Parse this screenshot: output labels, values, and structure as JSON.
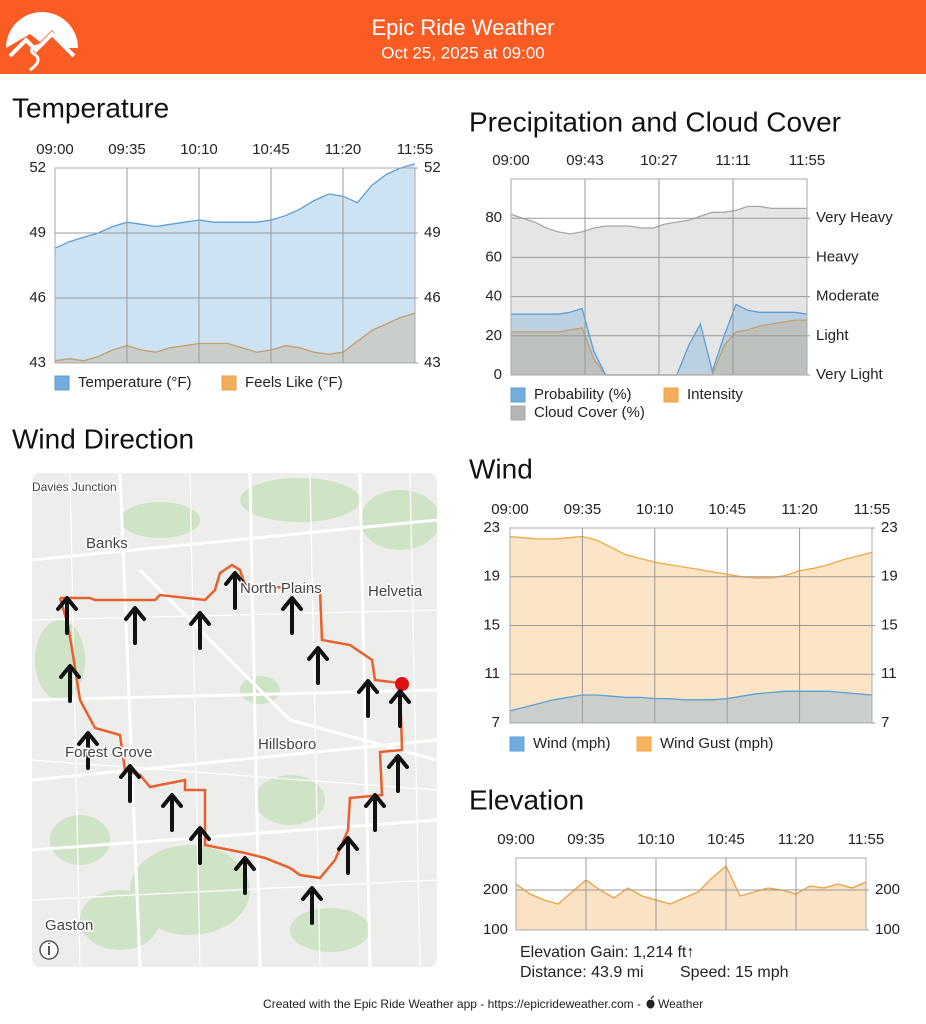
{
  "header": {
    "title": "Epic Ride Weather",
    "subtitle": "Oct 25, 2025 at 09:00"
  },
  "chart_data": [
    {
      "type": "area",
      "title": "Temperature",
      "x": [
        0,
        7,
        14,
        21,
        28,
        35,
        42,
        49,
        56,
        63,
        70,
        77,
        84,
        91,
        98,
        105,
        112,
        119,
        126,
        133,
        140,
        147,
        154,
        161,
        168,
        175
      ],
      "xlim": [
        0,
        175
      ],
      "xticks": [
        {
          "value": 0,
          "label": "09:00"
        },
        {
          "value": 35,
          "label": "09:35"
        },
        {
          "value": 70,
          "label": "10:10"
        },
        {
          "value": 105,
          "label": "10:45"
        },
        {
          "value": 140,
          "label": "11:20"
        },
        {
          "value": 175,
          "label": "11:55"
        }
      ],
      "ylim": [
        43,
        52
      ],
      "yticks": [
        43,
        46,
        49,
        52
      ],
      "y2lim": [
        43,
        52
      ],
      "y2ticks": [
        43,
        46,
        49,
        52
      ],
      "grid": true,
      "legend": "bottom",
      "series": [
        {
          "name": "Temperature (°F)",
          "color": "#5b9fd8",
          "values": [
            48.3,
            48.6,
            48.8,
            49.0,
            49.3,
            49.5,
            49.4,
            49.3,
            49.4,
            49.5,
            49.6,
            49.5,
            49.5,
            49.5,
            49.5,
            49.6,
            49.8,
            50.1,
            50.5,
            50.8,
            50.7,
            50.4,
            51.2,
            51.7,
            52.0,
            52.2
          ]
        },
        {
          "name": "Feels Like (°F)",
          "color": "#f0a040",
          "values": [
            43.1,
            43.2,
            43.1,
            43.3,
            43.6,
            43.8,
            43.6,
            43.5,
            43.7,
            43.8,
            43.9,
            43.9,
            43.9,
            43.7,
            43.5,
            43.6,
            43.8,
            43.7,
            43.5,
            43.4,
            43.5,
            44.0,
            44.5,
            44.8,
            45.1,
            45.3
          ]
        }
      ]
    },
    {
      "type": "area",
      "title": "Precipitation and Cloud Cover",
      "x": [
        0,
        7,
        14,
        21,
        28,
        35,
        42,
        49,
        56,
        63,
        70,
        77,
        84,
        91,
        98,
        105,
        112,
        119,
        126,
        133,
        140,
        147,
        154,
        161,
        168,
        175
      ],
      "xlim": [
        0,
        175
      ],
      "xticks": [
        {
          "value": 0,
          "label": "09:00"
        },
        {
          "value": 43.75,
          "label": "09:43"
        },
        {
          "value": 87.5,
          "label": "10:27"
        },
        {
          "value": 131.25,
          "label": "11:11"
        },
        {
          "value": 175,
          "label": "11:55"
        }
      ],
      "ylim": [
        0,
        100
      ],
      "yticks": [
        0,
        20,
        40,
        60,
        80
      ],
      "y2lim": [
        0,
        100
      ],
      "y2ticks": [
        {
          "value": 0,
          "label": "Very Light"
        },
        {
          "value": 20,
          "label": "Light"
        },
        {
          "value": 40,
          "label": "Moderate"
        },
        {
          "value": 60,
          "label": "Heavy"
        },
        {
          "value": 80,
          "label": "Very Heavy"
        }
      ],
      "grid": true,
      "legend": "bottom",
      "series": [
        {
          "name": "Probability (%)",
          "color": "#5b9fd8",
          "values": [
            31,
            31,
            31,
            31,
            31,
            32,
            34,
            12,
            0,
            0,
            0,
            0,
            0,
            0,
            0,
            15,
            26,
            2,
            20,
            36,
            33,
            32,
            32,
            32,
            32,
            31
          ]
        },
        {
          "name": "Intensity",
          "color": "#f0a040",
          "values": [
            22,
            22,
            22,
            22,
            22,
            23,
            24,
            8,
            0,
            0,
            0,
            0,
            0,
            0,
            0,
            0,
            0,
            0,
            15,
            22,
            23,
            25,
            26,
            27,
            28,
            28
          ]
        },
        {
          "name": "Cloud Cover (%)",
          "color": "#a8a8a8",
          "values": [
            82,
            80,
            78,
            75,
            73,
            72,
            73,
            75,
            76,
            76,
            76,
            75,
            75,
            77,
            78,
            79,
            81,
            83,
            83,
            84,
            86,
            86,
            85,
            85,
            85,
            85
          ]
        }
      ]
    },
    {
      "type": "area",
      "title": "Wind",
      "x": [
        0,
        7,
        14,
        21,
        28,
        35,
        42,
        49,
        56,
        63,
        70,
        77,
        84,
        91,
        98,
        105,
        112,
        119,
        126,
        133,
        140,
        147,
        154,
        161,
        168,
        175
      ],
      "xlim": [
        0,
        175
      ],
      "xticks": [
        {
          "value": 0,
          "label": "09:00"
        },
        {
          "value": 35,
          "label": "09:35"
        },
        {
          "value": 70,
          "label": "10:10"
        },
        {
          "value": 105,
          "label": "10:45"
        },
        {
          "value": 140,
          "label": "11:20"
        },
        {
          "value": 175,
          "label": "11:55"
        }
      ],
      "ylim": [
        7,
        23
      ],
      "yticks": [
        7,
        11,
        15,
        19,
        23
      ],
      "y2lim": [
        7,
        23
      ],
      "y2ticks": [
        7,
        11,
        15,
        19,
        23
      ],
      "grid": true,
      "legend": "bottom",
      "series": [
        {
          "name": "Wind (mph)",
          "color": "#5b9fd8",
          "values": [
            8.0,
            8.3,
            8.6,
            8.9,
            9.1,
            9.3,
            9.3,
            9.2,
            9.1,
            9.1,
            9.0,
            9.0,
            8.9,
            8.9,
            8.9,
            9.0,
            9.2,
            9.4,
            9.5,
            9.6,
            9.6,
            9.6,
            9.6,
            9.5,
            9.4,
            9.3
          ]
        },
        {
          "name": "Wind Gust (mph)",
          "color": "#f5a742",
          "values": [
            22.3,
            22.2,
            22.1,
            22.1,
            22.2,
            22.3,
            22.0,
            21.4,
            20.8,
            20.5,
            20.2,
            20.0,
            19.8,
            19.6,
            19.4,
            19.2,
            19.0,
            18.9,
            18.9,
            19.1,
            19.5,
            19.7,
            20.0,
            20.4,
            20.7,
            21.0
          ]
        }
      ]
    },
    {
      "type": "area",
      "title": "Elevation",
      "x": [
        0,
        7,
        14,
        21,
        28,
        35,
        42,
        49,
        56,
        63,
        70,
        77,
        84,
        91,
        98,
        105,
        112,
        119,
        126,
        133,
        140,
        147,
        154,
        161,
        168,
        175
      ],
      "xlim": [
        0,
        175
      ],
      "xticks": [
        {
          "value": 0,
          "label": "09:00"
        },
        {
          "value": 35,
          "label": "09:35"
        },
        {
          "value": 70,
          "label": "10:10"
        },
        {
          "value": 105,
          "label": "10:45"
        },
        {
          "value": 140,
          "label": "11:20"
        },
        {
          "value": 175,
          "label": "11:55"
        }
      ],
      "ylim": [
        100,
        280
      ],
      "yticks": [
        100,
        200
      ],
      "y2lim": [
        100,
        280
      ],
      "y2ticks": [
        100,
        200
      ],
      "grid": true,
      "color": "#f0a040",
      "values": [
        215,
        190,
        175,
        165,
        195,
        225,
        200,
        180,
        205,
        185,
        175,
        165,
        180,
        195,
        230,
        260,
        185,
        195,
        205,
        200,
        190,
        210,
        205,
        215,
        205,
        220
      ]
    }
  ],
  "stats": {
    "elevation_gain": "Elevation Gain: 1,214 ft↑",
    "distance": "Distance: 43.9 mi",
    "speed": "Speed: 15 mph"
  },
  "map": {
    "title": "Wind Direction",
    "labels": [
      "Davies Junction",
      "Banks",
      "North Plains",
      "Helvetia",
      "Forest Grove",
      "Hillsboro",
      "Gaston"
    ]
  },
  "footer": {
    "text": "Created with the Epic Ride Weather app - https://epicrideweather.com - ",
    "brand": "Weather"
  }
}
